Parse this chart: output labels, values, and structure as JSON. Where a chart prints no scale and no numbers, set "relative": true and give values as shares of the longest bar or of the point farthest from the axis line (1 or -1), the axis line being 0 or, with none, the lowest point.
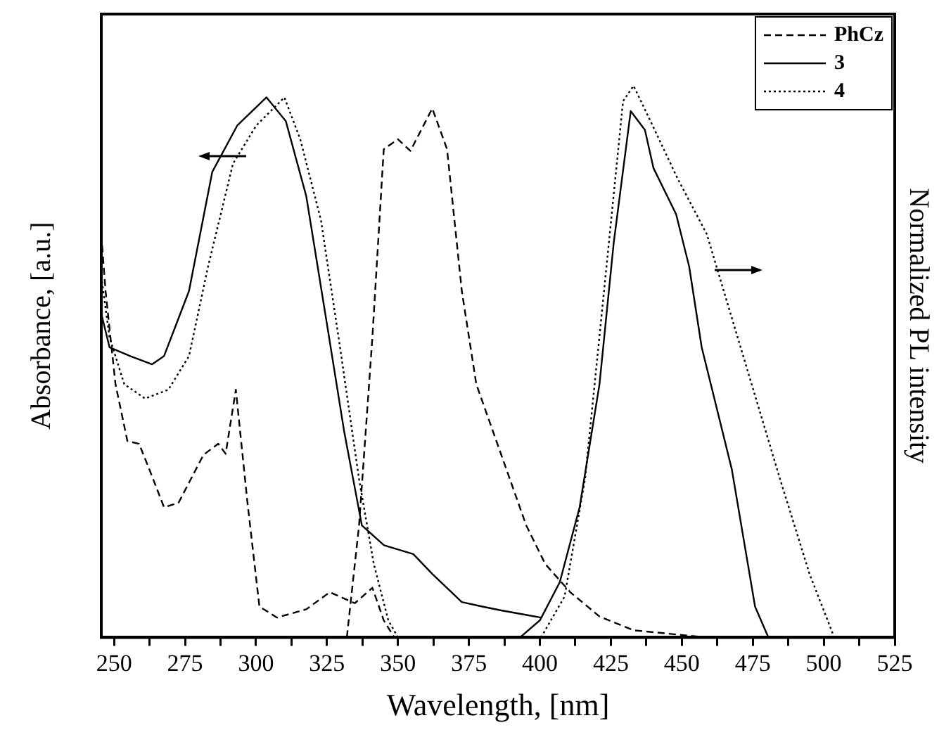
{
  "chart_data": {
    "type": "line",
    "relative": true,
    "xlabel": "Wavelength, [nm]",
    "ylabel": "Absorbance, [a.u.]",
    "y2label": "Normalized PL intensity",
    "xlim": [
      245.5,
      525
    ],
    "xticks": [
      250,
      {
        "value": 262.5,
        "label": null
      },
      275,
      {
        "value": 287.5,
        "label": null
      },
      300,
      {
        "value": 312.5,
        "label": null
      },
      325,
      {
        "value": 337.5,
        "label": null
      },
      350,
      {
        "value": 362.5,
        "label": null
      },
      375,
      {
        "value": 387.5,
        "label": null
      },
      400,
      {
        "value": 412.5,
        "label": null
      },
      425,
      {
        "value": 437.5,
        "label": null
      },
      450,
      {
        "value": 462.5,
        "label": null
      },
      475,
      {
        "value": 487.5,
        "label": null
      },
      500,
      {
        "value": 512.5,
        "label": null
      },
      525
    ],
    "legend": "top right",
    "grid": false,
    "marker": "none",
    "series": [
      {
        "name": "PhCz",
        "color": "#000000",
        "line_style": "dashed",
        "x": [
          245.5,
          247,
          250.5,
          254.7,
          258.8,
          262.4,
          267.6,
          272.7,
          281.5,
          286.7,
          289.3,
          292.9,
          297,
          301.2,
          307.4,
          317.7,
          326,
          334.8,
          341,
          345,
          348.7
        ],
        "values": [
          0.731,
          0.628,
          0.459,
          0.356,
          0.351,
          0.305,
          0.236,
          0.244,
          0.331,
          0.351,
          0.333,
          0.449,
          0.244,
          0.056,
          0.036,
          0.051,
          0.082,
          0.062,
          0.09,
          0.031,
          0
        ]
      },
      {
        "name": "3",
        "color": "#000000",
        "line_style": "solid",
        "x": [
          245.5,
          248.4,
          255.7,
          263.4,
          267.6,
          276.4,
          284.6,
          293.4,
          303.7,
          310.5,
          317.7,
          324.4,
          331.1,
          337.3,
          345.1,
          355.4,
          362.1,
          372.5,
          379.7,
          386.4,
          400.4
        ],
        "values": [
          0.587,
          0.526,
          0.51,
          0.495,
          0.51,
          0.628,
          0.844,
          0.928,
          0.979,
          0.936,
          0.8,
          0.587,
          0.372,
          0.203,
          0.167,
          0.151,
          0.115,
          0.064,
          0.056,
          0.049,
          0.036
        ]
      },
      {
        "name": "4",
        "color": "#000000",
        "line_style": "dotted",
        "x": [
          245.5,
          248.4,
          253.6,
          260.9,
          269.1,
          276.4,
          283.1,
          291.9,
          300.1,
          310,
          315.6,
          322.9,
          329.6,
          336.3,
          341.5,
          346.6,
          350
        ],
        "values": [
          0.654,
          0.544,
          0.459,
          0.433,
          0.449,
          0.51,
          0.672,
          0.859,
          0.928,
          0.979,
          0.903,
          0.756,
          0.526,
          0.287,
          0.133,
          0.031,
          0
        ]
      },
      {
        "color": "#000000",
        "line_style": "dashed",
        "x": [
          332,
          336.3,
          341,
          345,
          350,
          354.4,
          362.1,
          367.3,
          372.5,
          377.6,
          386.4,
          395.2,
          401.9,
          410.7,
          421,
          433,
          458.8
        ],
        "values": [
          0,
          0.203,
          0.544,
          0.885,
          0.903,
          0.882,
          0.959,
          0.885,
          0.628,
          0.459,
          0.331,
          0.203,
          0.133,
          0.082,
          0.038,
          0.013,
          0
        ]
      },
      {
        "color": "#000000",
        "line_style": "solid",
        "x": [
          393,
          400,
          407,
          414,
          421,
          426,
          432,
          437,
          440,
          448,
          452.6,
          457,
          467.6,
          475.8,
          480.5
        ],
        "values": [
          0,
          0.031,
          0.1,
          0.236,
          0.459,
          0.715,
          0.954,
          0.92,
          0.851,
          0.767,
          0.672,
          0.526,
          0.305,
          0.056,
          0
        ]
      },
      {
        "color": "#000000",
        "line_style": "dotted",
        "x": [
          400.4,
          408.7,
          415.9,
          422.6,
          429.3,
          433,
          439.7,
          448.4,
          458.8,
          470.7,
          484.6,
          495,
          503.7
        ],
        "values": [
          0,
          0.074,
          0.287,
          0.628,
          0.972,
          1,
          0.928,
          0.833,
          0.731,
          0.526,
          0.287,
          0.115,
          0
        ]
      }
    ]
  }
}
